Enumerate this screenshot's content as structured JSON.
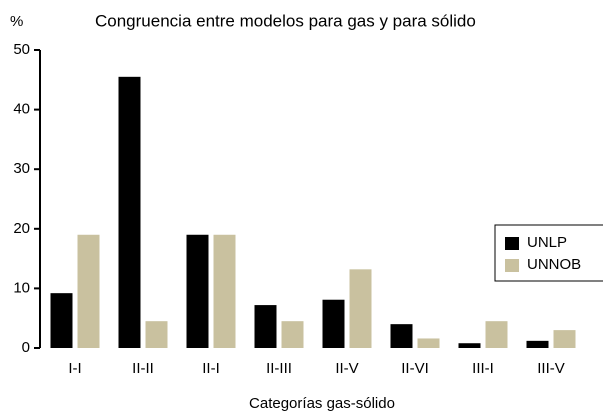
{
  "chart_data": {
    "type": "bar",
    "title": "Congruencia entre modelos para gas y para sólido",
    "y_label": "%",
    "x_label": "Categorías  gas-sólido",
    "categories": [
      "I-I",
      "II-II",
      "II-I",
      "II-III",
      "II-V",
      "II-VI",
      "III-I",
      "III-V"
    ],
    "series": [
      {
        "name": "UNLP",
        "color": "#000000",
        "values": [
          9.2,
          45.5,
          19,
          7.2,
          8.1,
          4,
          0.8,
          1.2
        ]
      },
      {
        "name": "UNNOB",
        "color": "#c9c19f",
        "values": [
          19,
          4.5,
          19,
          4.5,
          13.2,
          1.6,
          4.5,
          3
        ]
      }
    ],
    "ylim": [
      0,
      50
    ],
    "yticks": [
      0,
      10,
      20,
      30,
      40,
      50
    ],
    "legend": "right"
  }
}
